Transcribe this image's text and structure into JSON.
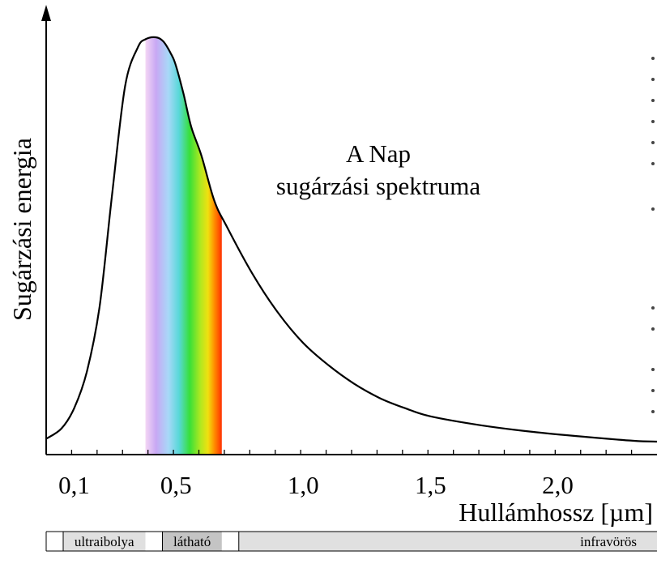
{
  "chart_data": {
    "type": "line",
    "title": "",
    "xlabel": "Hullámhossz [µm]",
    "ylabel": "Sugárzási energia",
    "xlim": [
      -0.01,
      2.39
    ],
    "ylim": [
      0,
      1
    ],
    "grid": false,
    "legend": "none",
    "x_tick_labels": [
      {
        "value": 0.1,
        "label": "0,1"
      },
      {
        "value": 0.5,
        "label": "0,5"
      },
      {
        "value": 1.0,
        "label": "1,0"
      },
      {
        "value": 1.5,
        "label": "1,5"
      },
      {
        "value": 2.0,
        "label": "2,0"
      }
    ],
    "series": [
      {
        "x": [
          -0.01,
          0.05,
          0.1,
          0.15,
          0.2,
          0.25,
          0.3,
          0.35,
          0.38,
          0.42,
          0.45,
          0.48,
          0.5,
          0.53,
          0.56,
          0.6,
          0.65,
          0.7,
          0.8,
          0.9,
          1.0,
          1.1,
          1.2,
          1.3,
          1.4,
          1.5,
          1.7,
          1.9,
          2.1,
          2.3,
          2.39
        ],
        "values": [
          0.015,
          0.04,
          0.09,
          0.18,
          0.34,
          0.62,
          0.88,
          0.975,
          0.995,
          1.0,
          0.99,
          0.96,
          0.93,
          0.86,
          0.78,
          0.71,
          0.6,
          0.535,
          0.42,
          0.325,
          0.25,
          0.195,
          0.15,
          0.115,
          0.09,
          0.07,
          0.048,
          0.032,
          0.02,
          0.01,
          0.008
        ]
      }
    ],
    "visible_band": {
      "start": 0.38,
      "end": 0.68
    },
    "annotation": [
      "A Nap",
      "sugárzási spektruma"
    ],
    "bands": [
      {
        "label": "ultraibolya",
        "start": -0.01,
        "end": 0.38,
        "color": "#e0e0e0"
      },
      {
        "label": "látható",
        "start": 0.38,
        "end": 0.68,
        "color": "#c4c4c4"
      },
      {
        "label": "infravörös",
        "start": 0.68,
        "end": 2.39,
        "color": "#e0e0e0"
      }
    ]
  }
}
